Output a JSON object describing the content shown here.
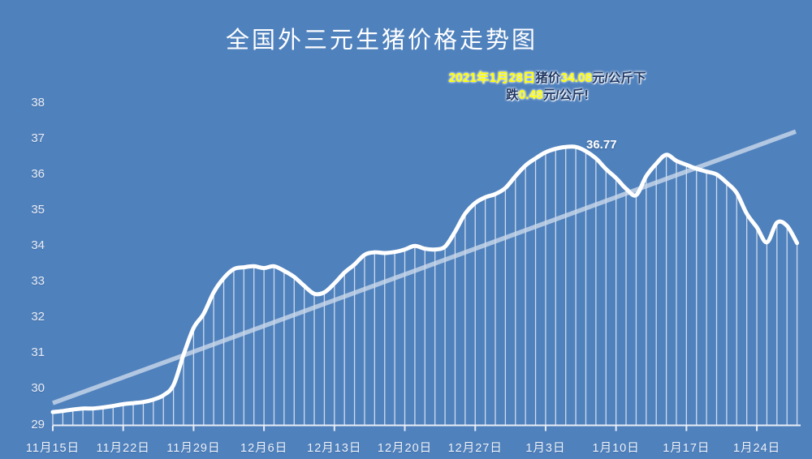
{
  "title": "全国外三元生猪价格走势图",
  "annotation": {
    "line1": [
      {
        "text": "2021年1月28日",
        "style": "highlight"
      },
      {
        "text": "猪价",
        "style": "dark"
      },
      {
        "text": "34.08",
        "style": "highlight"
      },
      {
        "text": "元/公斤下",
        "style": "dark"
      }
    ],
    "line2": [
      {
        "text": "跌",
        "style": "dark"
      },
      {
        "text": "0.48",
        "style": "highlight"
      },
      {
        "text": "元/公斤!",
        "style": "dark"
      }
    ]
  },
  "colors": {
    "background": "#4f81bd",
    "series_line": "#ffffff",
    "drop_lines": "rgba(255,255,255,0.72)",
    "trendline": "rgba(203,216,234,0.8)",
    "axis": "#e8eef6",
    "highlight_text": "#ffff00",
    "dark_text": "#1f3864"
  },
  "chart_data": {
    "type": "line",
    "title": "全国外三元生猪价格走势图",
    "xlabel": "",
    "ylabel": "",
    "ylim": [
      29,
      38
    ],
    "y_ticks": [
      29,
      30,
      31,
      32,
      33,
      34,
      35,
      36,
      37,
      38
    ],
    "x_tick_labels": [
      "11月15日",
      "11月22日",
      "11月29日",
      "12月6日",
      "12月13日",
      "12月20日",
      "12月27日",
      "1月3日",
      "1月10日",
      "1月17日",
      "1月24日"
    ],
    "start_date": "11月15日",
    "end_date": "1月28日",
    "frequency": "daily",
    "grid": false,
    "legend": false,
    "values": [
      29.35,
      29.38,
      29.42,
      29.45,
      29.45,
      29.48,
      29.52,
      29.57,
      29.6,
      29.63,
      29.7,
      29.82,
      30.1,
      30.95,
      31.7,
      32.1,
      32.7,
      33.1,
      33.35,
      33.4,
      33.43,
      33.38,
      33.43,
      33.3,
      33.13,
      32.88,
      32.66,
      32.7,
      32.95,
      33.25,
      33.48,
      33.75,
      33.82,
      33.8,
      33.83,
      33.9,
      34.0,
      33.92,
      33.9,
      33.98,
      34.4,
      34.9,
      35.2,
      35.36,
      35.45,
      35.62,
      35.95,
      36.25,
      36.45,
      36.62,
      36.72,
      36.77,
      36.77,
      36.65,
      36.45,
      36.15,
      35.9,
      35.6,
      35.42,
      35.95,
      36.3,
      36.55,
      36.38,
      36.27,
      36.16,
      36.08,
      36.0,
      35.77,
      35.48,
      34.9,
      34.52,
      34.1,
      34.65,
      34.56,
      34.08
    ],
    "point_annotations": [
      {
        "text": "36.77",
        "day_index": 52,
        "value": 36.77
      }
    ],
    "trendline": {
      "type": "linear",
      "start_value": 29.6,
      "end_value": 37.2
    }
  }
}
